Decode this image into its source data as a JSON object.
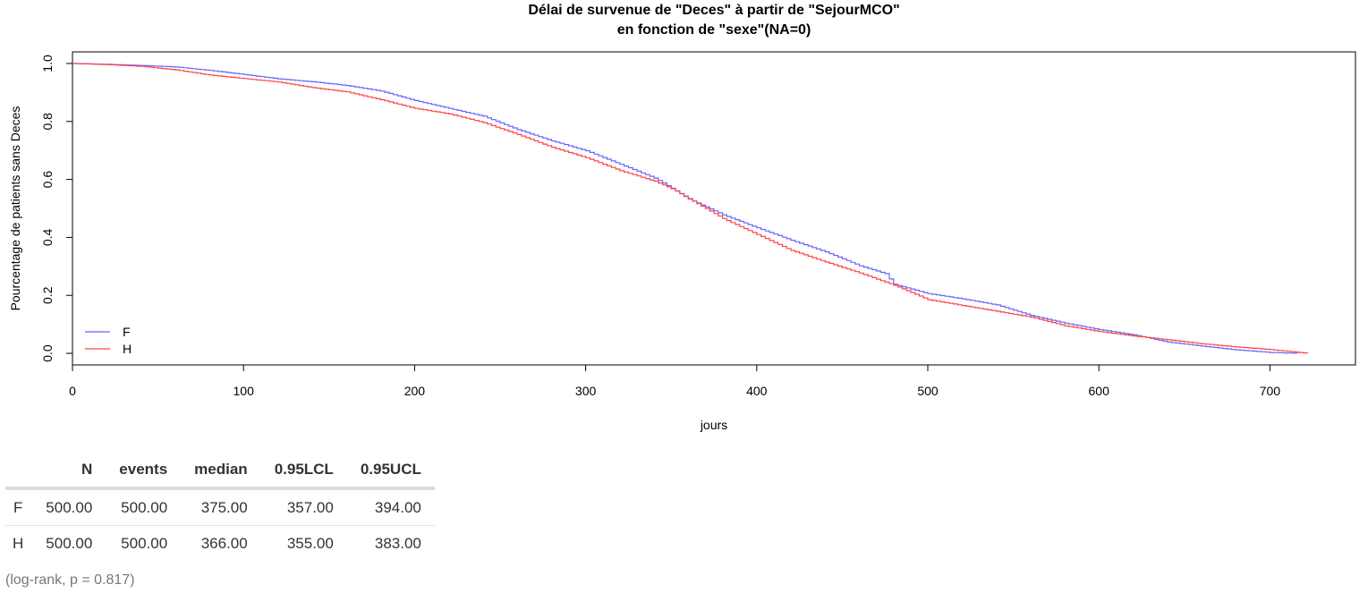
{
  "chart_data": {
    "type": "line",
    "title": "Délai de survenue de \"Deces\" à partir de \"SejourMCO\"",
    "subtitle": "en fonction de \"sexe\"(NA=0)",
    "xlabel": "jours",
    "ylabel": "Pourcentage de patients sans Deces",
    "xlim": [
      0,
      750
    ],
    "ylim": [
      -0.04,
      1.04
    ],
    "x_ticks": [
      "0",
      "100",
      "200",
      "300",
      "400",
      "500",
      "600",
      "700"
    ],
    "y_ticks": [
      "0.0",
      "0.2",
      "0.4",
      "0.6",
      "0.8",
      "1.0"
    ],
    "legend_position": "bottom-left",
    "series": [
      {
        "name": "F",
        "color": "#6666ff",
        "x": [
          0,
          20,
          40,
          60,
          80,
          100,
          120,
          140,
          160,
          180,
          200,
          220,
          240,
          260,
          280,
          300,
          320,
          340,
          350,
          360,
          380,
          400,
          420,
          440,
          460,
          475,
          480,
          500,
          520,
          540,
          560,
          580,
          600,
          620,
          640,
          660,
          680,
          700,
          716
        ],
        "y": [
          1.0,
          0.997,
          0.993,
          0.988,
          0.976,
          0.962,
          0.947,
          0.937,
          0.924,
          0.905,
          0.872,
          0.845,
          0.818,
          0.772,
          0.733,
          0.699,
          0.652,
          0.605,
          0.57,
          0.532,
          0.478,
          0.433,
          0.39,
          0.35,
          0.302,
          0.275,
          0.238,
          0.206,
          0.188,
          0.167,
          0.131,
          0.104,
          0.082,
          0.064,
          0.039,
          0.025,
          0.012,
          0.003,
          0.0
        ]
      },
      {
        "name": "H",
        "color": "#ff4444",
        "x": [
          0,
          20,
          40,
          60,
          80,
          100,
          120,
          140,
          160,
          180,
          200,
          220,
          240,
          260,
          280,
          300,
          320,
          340,
          350,
          360,
          380,
          400,
          420,
          440,
          460,
          480,
          500,
          520,
          540,
          560,
          580,
          600,
          620,
          640,
          660,
          680,
          700,
          722
        ],
        "y": [
          1.0,
          0.996,
          0.99,
          0.978,
          0.96,
          0.948,
          0.936,
          0.917,
          0.902,
          0.875,
          0.845,
          0.826,
          0.796,
          0.755,
          0.711,
          0.675,
          0.63,
          0.594,
          0.568,
          0.534,
          0.465,
          0.41,
          0.355,
          0.315,
          0.277,
          0.235,
          0.185,
          0.165,
          0.145,
          0.125,
          0.095,
          0.075,
          0.06,
          0.047,
          0.033,
          0.022,
          0.013,
          0.0
        ]
      }
    ]
  },
  "table": {
    "headers": [
      "",
      "N",
      "events",
      "median",
      "0.95LCL",
      "0.95UCL"
    ],
    "rows": [
      [
        "F",
        "500.00",
        "500.00",
        "375.00",
        "357.00",
        "394.00"
      ],
      [
        "H",
        "500.00",
        "500.00",
        "366.00",
        "355.00",
        "383.00"
      ]
    ]
  },
  "footnote": "(log-rank, p = 0.817)"
}
